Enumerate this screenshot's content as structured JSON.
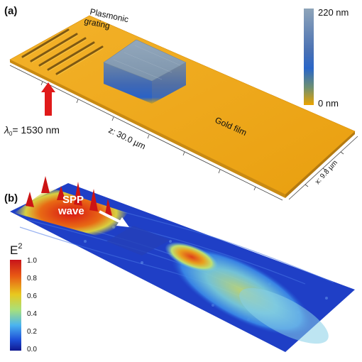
{
  "panel_a": {
    "label": "(a)",
    "grating_label_line1": "Plasmonic",
    "grating_label_line2": "grating",
    "wavelength_label": "1530 nm",
    "wavelength_symbol": "λ",
    "wavelength_subscript": "0",
    "z_label": "z: 30.0 µm",
    "x_label": "x: 9.8 µm",
    "film_label": "Gold film",
    "height_scale": {
      "max_label": "220 nm",
      "min_label": "0 nm",
      "colors": [
        "#8fa5b8",
        "#4a6fb0",
        "#2a6fc8",
        "#5a8a86",
        "#e8a000"
      ]
    },
    "gold_color": "#f0a818",
    "pillar_color": "#7c94ae",
    "arrow_color": "#e01a1a"
  },
  "panel_b": {
    "label": "(b)",
    "spp_line1": "SPP",
    "spp_line2": "wave",
    "colorbar_title": "E",
    "colorbar_exponent": "2",
    "colorbar_ticks": [
      "1.0",
      "0.8",
      "0.6",
      "0.4",
      "0.2",
      "0.0"
    ],
    "colorbar_colors": [
      "#c8141a",
      "#e85a14",
      "#e8c81e",
      "#a8e07a",
      "#4ab4f0",
      "#1e50d8",
      "#101890"
    ],
    "surface_base_color": "#1e3cc8"
  }
}
